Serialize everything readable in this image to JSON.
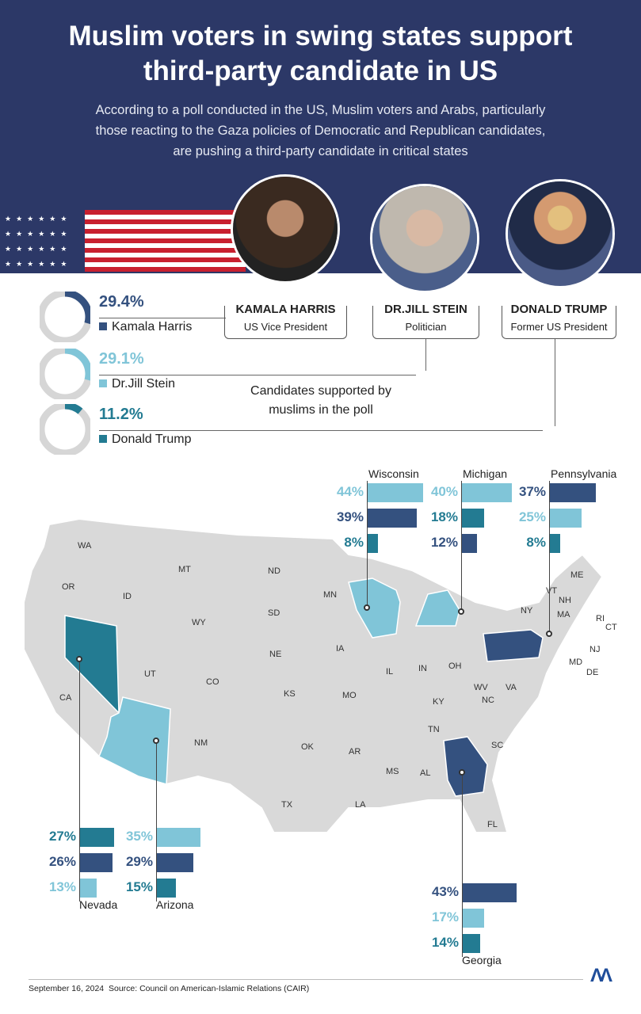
{
  "title": "Muslim voters in swing states support third-party candidate in US",
  "subtitle": "According to a poll conducted in the US, Muslim voters and Arabs, particularly those reacting to the Gaza policies of Democratic and Republican candidates, are pushing a third-party candidate in critical states",
  "colors": {
    "harris": "#34517f",
    "stein": "#80c5d8",
    "trump": "#237b92",
    "header": "#2c3867",
    "map": "#d9d9d9"
  },
  "candidates": [
    {
      "name": "KAMALA HARRIS",
      "role": "US Vice President",
      "legend": "Kamala Harris",
      "pct": "29.4%",
      "value": 29.4
    },
    {
      "name": "DR.JILL STEIN",
      "role": "Politician",
      "legend": "Dr.Jill Stein",
      "pct": "29.1%",
      "value": 29.1
    },
    {
      "name": "DONALD TRUMP",
      "role": "Former US President",
      "legend": "Donald Trump",
      "pct": "11.2%",
      "value": 11.2
    }
  ],
  "center_note": "Candidates supported by muslims in the poll",
  "chart_data": {
    "type": "bar",
    "series_keys": [
      "harris",
      "stein",
      "trump"
    ],
    "states": [
      {
        "name": "Wisconsin",
        "abbr": "WI",
        "bars": [
          {
            "c": "stein",
            "v": 44,
            "label": "44%"
          },
          {
            "c": "harris",
            "v": 39,
            "label": "39%"
          },
          {
            "c": "trump",
            "v": 8,
            "label": "8%"
          }
        ]
      },
      {
        "name": "Michigan",
        "abbr": "MI",
        "bars": [
          {
            "c": "stein",
            "v": 40,
            "label": "40%"
          },
          {
            "c": "trump",
            "v": 18,
            "label": "18%"
          },
          {
            "c": "harris",
            "v": 12,
            "label": "12%"
          }
        ]
      },
      {
        "name": "Pennsylvania",
        "abbr": "PA",
        "bars": [
          {
            "c": "harris",
            "v": 37,
            "label": "37%"
          },
          {
            "c": "stein",
            "v": 25,
            "label": "25%"
          },
          {
            "c": "trump",
            "v": 8,
            "label": "8%"
          }
        ]
      },
      {
        "name": "Nevada",
        "abbr": "NV",
        "bars": [
          {
            "c": "trump",
            "v": 27,
            "label": "27%"
          },
          {
            "c": "harris",
            "v": 26,
            "label": "26%"
          },
          {
            "c": "stein",
            "v": 13,
            "label": "13%"
          }
        ]
      },
      {
        "name": "Arizona",
        "abbr": "AZ",
        "bars": [
          {
            "c": "stein",
            "v": 35,
            "label": "35%"
          },
          {
            "c": "harris",
            "v": 29,
            "label": "29%"
          },
          {
            "c": "trump",
            "v": 15,
            "label": "15%"
          }
        ]
      },
      {
        "name": "Georgia",
        "abbr": "GA",
        "bars": [
          {
            "c": "harris",
            "v": 43,
            "label": "43%"
          },
          {
            "c": "stein",
            "v": 17,
            "label": "17%"
          },
          {
            "c": "trump",
            "v": 14,
            "label": "14%"
          }
        ]
      }
    ]
  },
  "map_labels": [
    "WA",
    "OR",
    "CA",
    "ID",
    "MT",
    "WY",
    "UT",
    "CO",
    "NM",
    "ND",
    "SD",
    "NE",
    "KS",
    "OK",
    "TX",
    "MN",
    "IA",
    "MO",
    "AR",
    "LA",
    "IL",
    "IN",
    "OH",
    "KY",
    "TN",
    "MS",
    "AL",
    "FL",
    "NC",
    "SC",
    "VA",
    "WV",
    "NY",
    "VT",
    "NH",
    "ME",
    "MA",
    "RI",
    "CT",
    "NJ",
    "MD",
    "DE"
  ],
  "footer": {
    "date": "September 16, 2024",
    "source": "Source: Council on American-Islamic Relations (CAIR)"
  },
  "logo": "AA"
}
